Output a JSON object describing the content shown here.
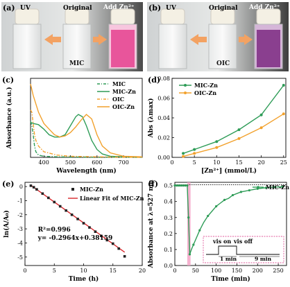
{
  "photos": [
    {
      "letter": "(a)",
      "uv": "UV",
      "original": "Original",
      "add": "Add Zn²⁺",
      "sample": "MIC",
      "solution_color": "#e8559b"
    },
    {
      "letter": "(b)",
      "uv": "UV",
      "original": "Original",
      "add": "Add Zn²⁺",
      "sample": "OIC",
      "solution_color": "#8a3f8f"
    }
  ],
  "chart_data": [
    {
      "panel": "(c)",
      "type": "line",
      "xlabel": "Wavelength (nm)",
      "ylabel": "Absorbance (a.u.)",
      "xlim": [
        350,
        770
      ],
      "xticks": [
        400,
        500,
        600,
        700
      ],
      "colors": {
        "MIC": "#2e9c57",
        "OIC": "#f2a12c"
      },
      "series": [
        {
          "name": "MIC",
          "style": "dash-dot",
          "color": "#2e9c57",
          "x": [
            350,
            355,
            360,
            365,
            370,
            380,
            400,
            450,
            500,
            600,
            700,
            770
          ],
          "y": [
            0.32,
            0.28,
            0.2,
            0.1,
            0.05,
            0.02,
            0.01,
            0.005,
            0.003,
            0.002,
            0.001,
            0.0
          ]
        },
        {
          "name": "MIC-Zn",
          "style": "solid",
          "color": "#2e9c57",
          "x": [
            350,
            360,
            380,
            400,
            420,
            440,
            460,
            480,
            500,
            520,
            530,
            545,
            560,
            580,
            600,
            620,
            650,
            700,
            770
          ],
          "y": [
            0.31,
            0.3,
            0.29,
            0.25,
            0.2,
            0.18,
            0.18,
            0.2,
            0.28,
            0.36,
            0.38,
            0.36,
            0.28,
            0.15,
            0.07,
            0.03,
            0.01,
            0.005,
            0.002
          ]
        },
        {
          "name": "OIC",
          "style": "dash-dot",
          "color": "#f2a12c",
          "x": [
            350,
            355,
            360,
            365,
            370,
            380,
            400,
            450,
            500,
            600,
            700,
            770
          ],
          "y": [
            0.42,
            0.4,
            0.3,
            0.2,
            0.15,
            0.1,
            0.05,
            0.02,
            0.01,
            0.005,
            0.002,
            0.0
          ]
        },
        {
          "name": "OIC-Zn",
          "style": "solid",
          "color": "#f2a12c",
          "x": [
            350,
            360,
            380,
            400,
            420,
            440,
            460,
            480,
            500,
            520,
            540,
            560,
            580,
            600,
            620,
            650,
            700,
            770
          ],
          "y": [
            0.65,
            0.55,
            0.4,
            0.3,
            0.25,
            0.2,
            0.18,
            0.19,
            0.22,
            0.27,
            0.33,
            0.38,
            0.34,
            0.2,
            0.1,
            0.04,
            0.01,
            0.005
          ]
        }
      ],
      "ylim": [
        0,
        0.7
      ],
      "legend": "top-right"
    },
    {
      "panel": "(d)",
      "type": "line",
      "xlabel": "[Zn²⁺] (mmol/L)",
      "ylabel": "Abs (λmax)",
      "xlim": [
        0,
        25.5
      ],
      "ylim": [
        0.0,
        0.08
      ],
      "xticks": [
        0,
        5,
        10,
        15,
        20,
        25
      ],
      "yticks": [
        "0.00",
        "0.02",
        "0.04",
        "0.06",
        "0.08"
      ],
      "series": [
        {
          "name": "MIC-Zn",
          "color": "#2e9c57",
          "x": [
            2.5,
            5,
            10,
            15,
            20,
            25
          ],
          "y": [
            0.004,
            0.008,
            0.016,
            0.028,
            0.043,
            0.073
          ]
        },
        {
          "name": "OIC-Zn",
          "color": "#f2a12c",
          "x": [
            2.5,
            5,
            10,
            15,
            20,
            25
          ],
          "y": [
            0.001,
            0.004,
            0.01,
            0.019,
            0.03,
            0.044
          ]
        }
      ],
      "legend": "top-left"
    },
    {
      "panel": "(e)",
      "type": "scatter",
      "xlabel": "Time (h)",
      "ylabel": "ln(A/A₀)",
      "xlim": [
        0,
        20
      ],
      "ylim": [
        -5.6,
        0.3
      ],
      "xticks": [
        0,
        5,
        10,
        15,
        20
      ],
      "yticks": [
        0,
        -1,
        -2,
        -3,
        -4,
        -5
      ],
      "series": [
        {
          "name": "MIC-Zn",
          "marker": "square",
          "color": "#222222",
          "x": [
            1,
            1.5,
            2,
            3,
            4,
            5,
            6,
            7,
            8,
            9,
            10,
            11,
            12,
            13,
            14,
            15,
            16,
            17
          ],
          "y": [
            0.06,
            -0.05,
            -0.2,
            -0.5,
            -0.8,
            -1.1,
            -1.4,
            -1.7,
            -2.0,
            -2.3,
            -2.6,
            -2.9,
            -3.2,
            -3.5,
            -3.8,
            -4.05,
            -4.4,
            -4.95
          ]
        },
        {
          "name": "Linear Fit of MIC-Zn",
          "style": "line",
          "color": "#d9262b",
          "x": [
            1,
            17
          ],
          "y": [
            0.08669,
            -4.65721
          ]
        }
      ],
      "annotation": {
        "r2": "R²=0.996",
        "equation": "y= -0.2964x+0.38159"
      },
      "legend": "top-right"
    },
    {
      "panel": "(f)",
      "type": "line",
      "xlabel": "Time (min)",
      "ylabel": "Absorbance at λ=527 nm",
      "xlim": [
        0,
        270
      ],
      "ylim": [
        0.0,
        0.52
      ],
      "xticks": [
        0,
        50,
        100,
        150,
        200,
        250
      ],
      "yticks": [
        "0.0",
        "0.1",
        "0.2",
        "0.3",
        "0.4",
        "0.5"
      ],
      "series": [
        {
          "name": "MIC-Zn",
          "color": "#2e9c57",
          "x": [
            0,
            5,
            10,
            15,
            20,
            25,
            30,
            33,
            36,
            40,
            45,
            50,
            60,
            70,
            80,
            90,
            100,
            110,
            120,
            130,
            140,
            150,
            160,
            170,
            180,
            190,
            200,
            210,
            220,
            230,
            240,
            250,
            260,
            265
          ],
          "y": [
            0.5,
            0.5,
            0.5,
            0.5,
            0.5,
            0.5,
            0.5,
            0.3,
            0.07,
            0.1,
            0.13,
            0.16,
            0.22,
            0.27,
            0.31,
            0.34,
            0.37,
            0.39,
            0.41,
            0.42,
            0.44,
            0.45,
            0.46,
            0.465,
            0.47,
            0.475,
            0.48,
            0.483,
            0.486,
            0.488,
            0.49,
            0.491,
            0.492,
            0.493
          ]
        }
      ],
      "reference_line": 0.505,
      "uv_band": [
        30,
        38
      ],
      "inset": {
        "vis_on": "vis on",
        "vis_off": "vis off",
        "d1": "1 min",
        "d2": "9 min"
      },
      "legend": "top-right"
    }
  ]
}
